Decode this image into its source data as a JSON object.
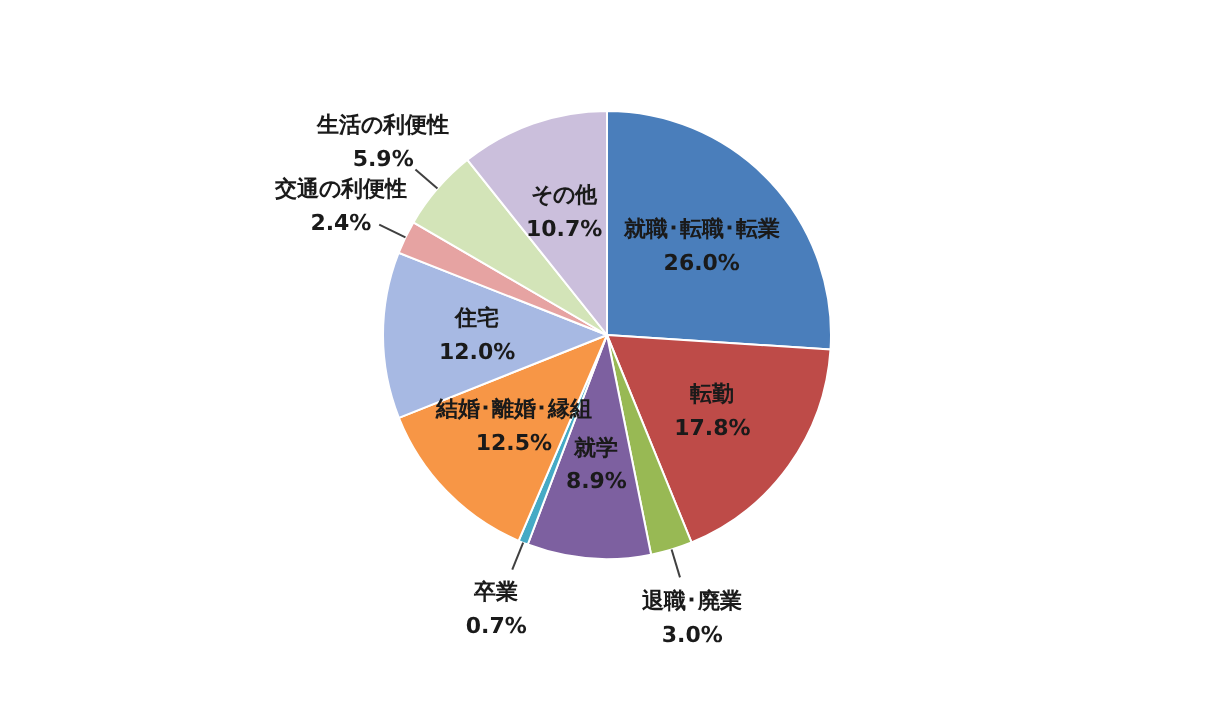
{
  "chart_data": {
    "type": "pie",
    "categories": [
      "就職･転職･転業",
      "転勤",
      "退職･廃業",
      "就学",
      "卒業",
      "結婚･離婚･縁組",
      "住宅",
      "交通の利便性",
      "生活の利便性",
      "その他"
    ],
    "values": [
      26.0,
      17.8,
      3.0,
      8.9,
      0.7,
      12.5,
      12.0,
      2.4,
      5.9,
      10.7
    ],
    "value_labels": [
      "26.0%",
      "17.8%",
      "3.0%",
      "8.9%",
      "0.7%",
      "12.5%",
      "12.0%",
      "2.4%",
      "5.9%",
      "10.7%"
    ],
    "colors": [
      "#4a7ebb",
      "#be4b48",
      "#98b954",
      "#7d60a0",
      "#46aac5",
      "#f79646",
      "#a7b9e3",
      "#e6a3a2",
      "#d3e4b8",
      "#cbbfdc"
    ]
  }
}
